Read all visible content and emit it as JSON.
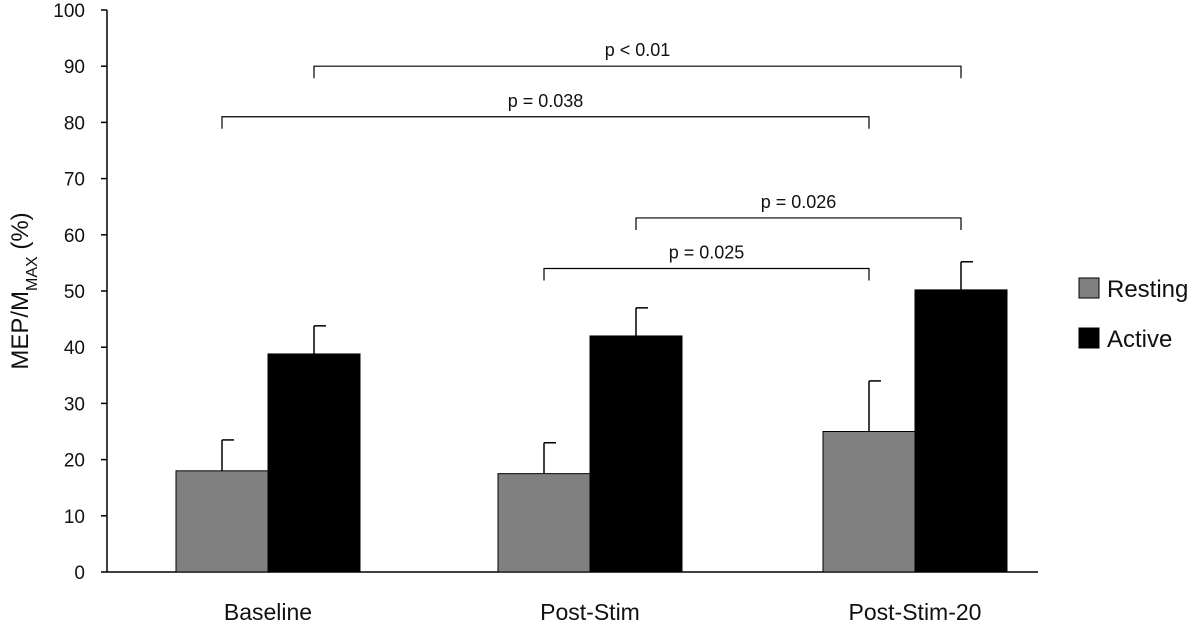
{
  "chart_data": {
    "type": "bar",
    "categories": [
      "Baseline",
      "Post-Stim",
      "Post-Stim-20"
    ],
    "series": [
      {
        "name": "Resting",
        "color": "#808080",
        "values": [
          18,
          17.5,
          25
        ],
        "errors": [
          5.5,
          5.5,
          9
        ]
      },
      {
        "name": "Active",
        "color": "#000000",
        "values": [
          38.8,
          42,
          50.2
        ],
        "errors": [
          5,
          5,
          5
        ]
      }
    ],
    "ylim": [
      0,
      100
    ],
    "yticks": [
      0,
      10,
      20,
      30,
      40,
      50,
      60,
      70,
      80,
      90,
      100
    ],
    "ylabel": {
      "main": "MEP/M",
      "sub": "MAX",
      "suffix": " (%)"
    },
    "xlabel": "",
    "grid": false,
    "legend_position": "right",
    "annotations": [
      {
        "text": "p < 0.01",
        "from": {
          "category": 0,
          "series": 1
        },
        "to": {
          "category": 2,
          "series": 1
        },
        "level": 90
      },
      {
        "text": "p = 0.038",
        "from": {
          "category": 0,
          "series": 0
        },
        "to": {
          "category": 2,
          "series": 0
        },
        "level": 81
      },
      {
        "text": "p = 0.026",
        "from": {
          "category": 1,
          "series": 1
        },
        "to": {
          "category": 2,
          "series": 1
        },
        "level": 63
      },
      {
        "text": "p = 0.025",
        "from": {
          "category": 1,
          "series": 0
        },
        "to": {
          "category": 2,
          "series": 0
        },
        "level": 54
      }
    ]
  }
}
